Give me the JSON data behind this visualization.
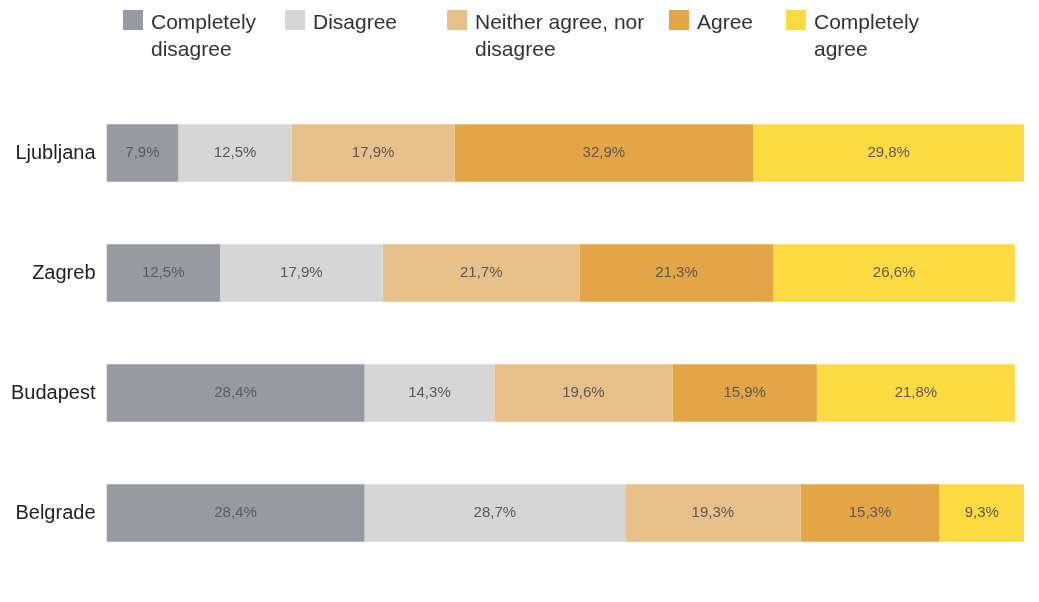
{
  "chart_data": {
    "type": "bar",
    "orientation": "horizontal",
    "stacked": true,
    "categories": [
      "Ljubljana",
      "Zagreb",
      "Budapest",
      "Belgrade"
    ],
    "series": [
      {
        "name": "Completely disagree",
        "color": "#979ba1",
        "values": [
          7.9,
          12.5,
          28.4,
          28.4
        ],
        "value_labels": [
          "7,9%",
          "12,5%",
          "28,4%",
          "28,4%"
        ]
      },
      {
        "name": "Disagree",
        "color": "#d6d6d6",
        "values": [
          12.5,
          17.9,
          14.3,
          28.7
        ],
        "value_labels": [
          "12,5%",
          "17,9%",
          "14,3%",
          "28,7%"
        ]
      },
      {
        "name": "Neither agree, nor disagree",
        "color": "#e8c08a",
        "values": [
          17.9,
          21.7,
          19.6,
          19.3
        ],
        "value_labels": [
          "17,9%",
          "21,7%",
          "19,6%",
          "19,3%"
        ]
      },
      {
        "name": "Agree",
        "color": "#e3a545",
        "values": [
          32.9,
          21.3,
          15.9,
          15.3
        ],
        "value_labels": [
          "32,9%",
          "21,3%",
          "15,9%",
          "15,3%"
        ]
      },
      {
        "name": "Completely agree",
        "color": "#fedb40",
        "values": [
          29.8,
          26.6,
          21.8,
          9.3
        ],
        "value_labels": [
          "29,8%",
          "26,6%",
          "21,8%",
          "9,3%"
        ]
      }
    ],
    "xlim": [
      0,
      101
    ],
    "tick_labels": "y",
    "legend": "top"
  }
}
